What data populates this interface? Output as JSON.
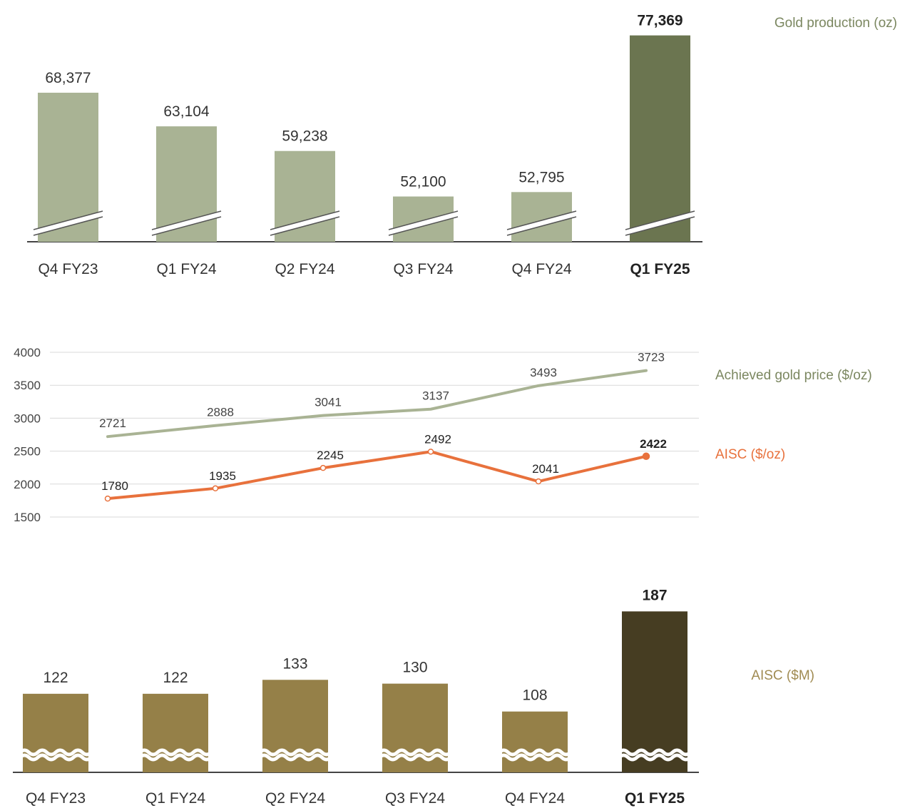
{
  "colors": {
    "production_bar": "#a9b394",
    "production_highlight": "#6b7550",
    "gold_price_line": "#a9b394",
    "aisc_line": "#e8713c",
    "aisc_bar": "#958048",
    "aisc_highlight": "#463d22",
    "axis": "#444444",
    "grid": "#d9d9d9"
  },
  "chart_data": [
    {
      "type": "bar",
      "legend": "Gold production (oz)",
      "legend_position": "top-right",
      "categories": [
        "Q4 FY23",
        "Q1 FY24",
        "Q2 FY24",
        "Q3 FY24",
        "Q4 FY24",
        "Q1 FY25"
      ],
      "values": [
        68377,
        63104,
        59238,
        52100,
        52795,
        77369
      ],
      "value_labels": [
        "68,377",
        "63,104",
        "59,238",
        "52,100",
        "52,795",
        "77,369"
      ],
      "highlight_index": 5,
      "axis_break": true,
      "ylim": [
        45000,
        78000
      ]
    },
    {
      "type": "line",
      "categories": [
        "Q4 FY23",
        "Q1 FY24",
        "Q2 FY24",
        "Q3 FY24",
        "Q4 FY24",
        "Q1 FY25"
      ],
      "y_ticks": [
        "4000",
        "3500",
        "3000",
        "2500",
        "2000",
        "1500"
      ],
      "ylim": [
        1500,
        4000
      ],
      "grid": true,
      "legend_position": "right",
      "series": [
        {
          "name": "Achieved gold price ($/oz)",
          "values": [
            2721,
            2888,
            3041,
            3137,
            3493,
            3723
          ]
        },
        {
          "name": "AISC ($/oz)",
          "values": [
            1780,
            1935,
            2245,
            2492,
            2041,
            2422
          ]
        }
      ]
    },
    {
      "type": "bar",
      "legend": "AISC ($M)",
      "legend_position": "right",
      "categories": [
        "Q4 FY23",
        "Q1 FY24",
        "Q2 FY24",
        "Q3 FY24",
        "Q4 FY24",
        "Q1 FY25"
      ],
      "values": [
        122,
        122,
        133,
        130,
        108,
        187
      ],
      "value_labels": [
        "122",
        "122",
        "133",
        "130",
        "108",
        "187"
      ],
      "highlight_index": 5,
      "axis_break": true,
      "ylim": [
        60,
        190
      ]
    }
  ]
}
